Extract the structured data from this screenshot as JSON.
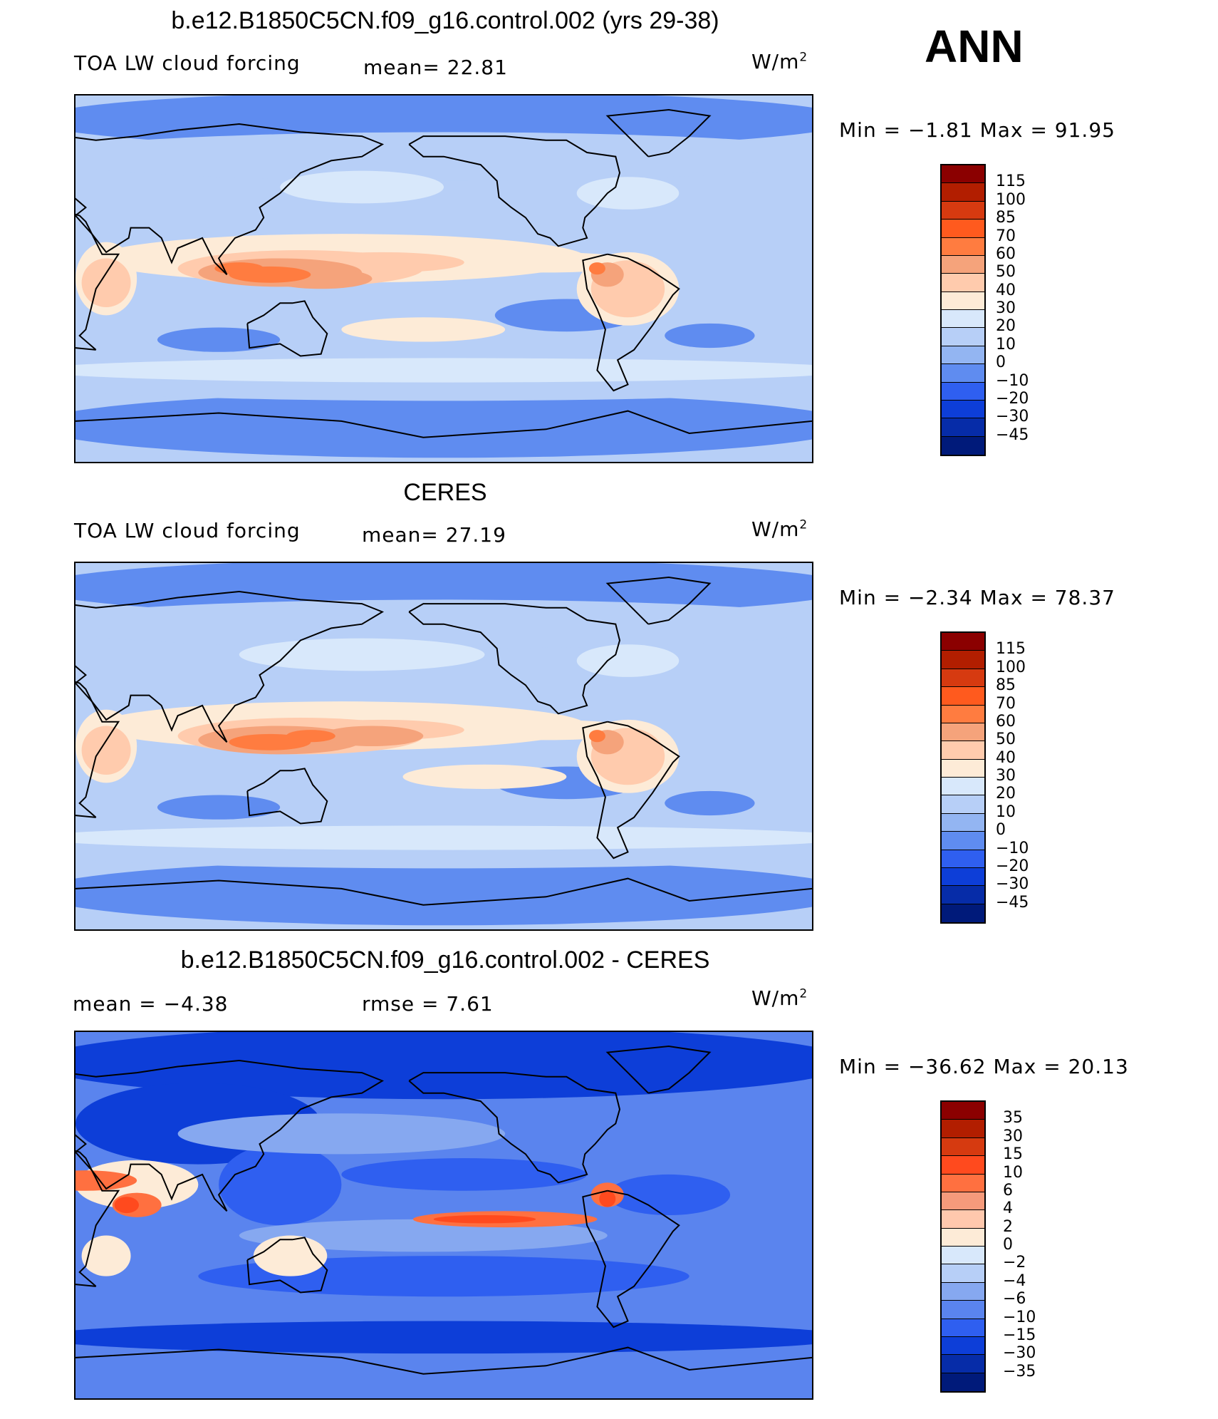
{
  "season": "ANN",
  "units_base": "W/m",
  "units_sup": "2",
  "chart_data": [
    {
      "type": "heatmap",
      "title": "b.e12.B1850C5CN.f09_g16.control.002 (yrs 29-38)",
      "left_label": "TOA LW cloud forcing",
      "mean_text": "mean=   22.81",
      "minmax_text": "Min =  −1.81  Max =   91.95",
      "mean": 22.81,
      "min": -1.81,
      "max": 91.95,
      "levels": [
        "115",
        "100",
        "85",
        "70",
        "60",
        "50",
        "40",
        "30",
        "20",
        "10",
        "0",
        "−10",
        "−20",
        "−30",
        "−45"
      ],
      "colors": [
        "#8b0000",
        "#b21e00",
        "#d63a10",
        "#ff5a1e",
        "#ff7c40",
        "#f5a37b",
        "#ffcbad",
        "#fdebd7",
        "#d8e8fb",
        "#b7cff7",
        "#93b5f2",
        "#5f8cf0",
        "#2f5ff0",
        "#0d3ed8",
        "#062ca8",
        "#001a7a"
      ],
      "pattern": "model"
    },
    {
      "type": "heatmap",
      "title": "CERES",
      "left_label": "TOA LW cloud forcing",
      "mean_text": "mean=   27.19",
      "minmax_text": "Min =  −2.34  Max =   78.37",
      "mean": 27.19,
      "min": -2.34,
      "max": 78.37,
      "levels": [
        "115",
        "100",
        "85",
        "70",
        "60",
        "50",
        "40",
        "30",
        "20",
        "10",
        "0",
        "−10",
        "−20",
        "−30",
        "−45"
      ],
      "colors": [
        "#8b0000",
        "#b21e00",
        "#d63a10",
        "#ff5a1e",
        "#ff7c40",
        "#f5a37b",
        "#ffcbad",
        "#fdebd7",
        "#d8e8fb",
        "#b7cff7",
        "#93b5f2",
        "#5f8cf0",
        "#2f5ff0",
        "#0d3ed8",
        "#062ca8",
        "#001a7a"
      ],
      "pattern": "obs"
    },
    {
      "type": "heatmap",
      "title": "b.e12.B1850C5CN.f09_g16.control.002 - CERES",
      "left_label": "mean =   −4.38",
      "mean_text": "rmse =    7.61",
      "minmax_text": "Min = −36.62  Max =   20.13",
      "mean": -4.38,
      "rmse": 7.61,
      "min": -36.62,
      "max": 20.13,
      "levels": [
        "35",
        "30",
        "15",
        "10",
        "6",
        "4",
        "2",
        "0",
        "−2",
        "−4",
        "−6",
        "−10",
        "−15",
        "−30",
        "−35"
      ],
      "colors": [
        "#8b0000",
        "#b21e00",
        "#d63a10",
        "#ff4a1e",
        "#ff7040",
        "#f59a7b",
        "#ffc8ad",
        "#fdebd7",
        "#d8e8fb",
        "#b7cff7",
        "#86a8f0",
        "#5a84ee",
        "#2f5ff0",
        "#0d3ed8",
        "#062ca8",
        "#001a7a"
      ],
      "pattern": "diff"
    }
  ]
}
